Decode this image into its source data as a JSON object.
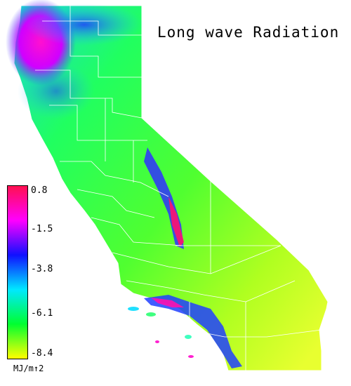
{
  "map": {
    "title": "Long wave Radiation",
    "region": "California"
  },
  "legend": {
    "units": "MJ/m↑2",
    "ticks": [
      "0.8",
      "-1.5",
      "-3.8",
      "-6.1",
      "-8.4"
    ],
    "gradient_stops": [
      "#ff1050",
      "#ff00ff",
      "#1010ff",
      "#00e8ff",
      "#00ff30",
      "#ffff00"
    ]
  }
}
